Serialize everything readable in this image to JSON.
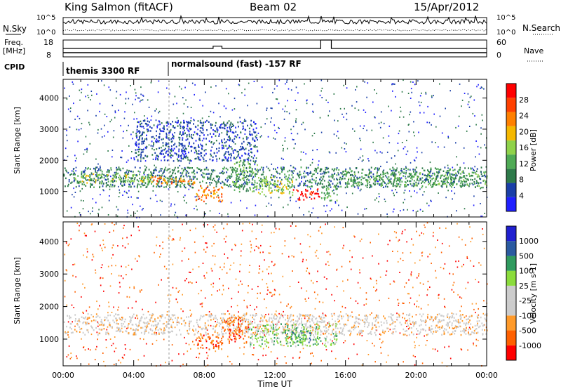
{
  "header": {
    "station": "King Salmon (fitACF)",
    "beam": "Beam 02",
    "date": "15/Apr/2012"
  },
  "left_labels": {
    "nsky": "N.Sky",
    "freq": "Freq.",
    "freq_unit": "[MHz]",
    "cpid": "CPID"
  },
  "right_labels": {
    "nsearch": "N.Search",
    "nave": "Nave"
  },
  "cpid_segments": [
    {
      "label": "themis 3300 RF",
      "start_hour": 0
    },
    {
      "label": "normalsound (fast) -157 RF",
      "start_hour": 6
    }
  ],
  "colors": {
    "power_scale": [
      "#2020ff",
      "#1a3fa8",
      "#2e7a4a",
      "#4faa55",
      "#8fd24a",
      "#f5b800",
      "#ff8000",
      "#ff4000",
      "#ff0000"
    ],
    "velocity_scale": [
      "#ff0000",
      "#ff6000",
      "#ff9a2a",
      "#cccccc",
      "#cccccc",
      "#8bdc3c",
      "#2f9a5e",
      "#2a5aa0",
      "#2020d0"
    ]
  },
  "chart_data": [
    {
      "type": "line",
      "title": "N.Sky / N.Search",
      "left_axis": {
        "label": "N.Sky",
        "ticks": [
          "10^5",
          "10^0"
        ]
      },
      "right_axis": {
        "label": "N.Search",
        "ticks": [
          "10^5",
          "10^0"
        ]
      },
      "x": {
        "range_hours": [
          0,
          24
        ]
      }
    },
    {
      "type": "line",
      "left_axis": {
        "label": "Freq. [MHz]",
        "ticks": [
          "18",
          "8"
        ],
        "ylim": [
          8,
          18
        ]
      },
      "right_axis": {
        "label": "Nave",
        "ticks": [
          "60",
          "0"
        ],
        "ylim": [
          0,
          60
        ]
      },
      "series": [
        {
          "name": "Freq.",
          "x": [
            0,
            24
          ],
          "y": [
            10.5,
            10.5
          ]
        },
        {
          "name": "Nave",
          "x": [
            0,
            8.5,
            8.5,
            9.0,
            9.0,
            14.6,
            14.6,
            15.2,
            15.2,
            24
          ],
          "y": [
            30,
            30,
            38,
            38,
            30,
            30,
            60,
            60,
            30,
            30
          ]
        }
      ]
    },
    {
      "type": "heatmap",
      "ylabel": "Slant Range [km]",
      "xlabel": "",
      "ylim": [
        180,
        4600
      ],
      "yticks": [
        1000,
        2000,
        3000,
        4000
      ],
      "colorbar": {
        "label": "Power [dB]",
        "ticks": [
          "4",
          "8",
          "12",
          "16",
          "20",
          "24",
          "28"
        ]
      },
      "regions": [
        {
          "x0": 0,
          "x1": 24,
          "y0": 1150,
          "y1": 1800,
          "level": 2
        },
        {
          "x0": 0.5,
          "x1": 5,
          "y0": 1300,
          "y1": 1600,
          "level": 4
        },
        {
          "x0": 5,
          "x1": 7.5,
          "y0": 1250,
          "y1": 1500,
          "level": 6
        },
        {
          "x0": 7.5,
          "x1": 9,
          "y0": 700,
          "y1": 1200,
          "level": 6
        },
        {
          "x0": 9.5,
          "x1": 11,
          "y0": 1000,
          "y1": 2000,
          "level": 3
        },
        {
          "x0": 11,
          "x1": 13,
          "y0": 900,
          "y1": 1500,
          "level": 4
        },
        {
          "x0": 13,
          "x1": 14.5,
          "y0": 750,
          "y1": 1100,
          "level": 8
        },
        {
          "x0": 14.6,
          "x1": 15.5,
          "y0": 700,
          "y1": 1200,
          "level": 3
        },
        {
          "x0": 16,
          "x1": 24,
          "y0": 1200,
          "y1": 1650,
          "level": 3
        },
        {
          "x0": 4,
          "x1": 11,
          "y0": 2000,
          "y1": 3300,
          "level": 1
        }
      ]
    },
    {
      "type": "heatmap",
      "ylabel": "Slant Range [km]",
      "xlabel": "Time UT",
      "ylim": [
        180,
        4600
      ],
      "yticks": [
        1000,
        2000,
        3000,
        4000
      ],
      "x_tick_labels": [
        "00:00",
        "04:00",
        "08:00",
        "12:00",
        "16:00",
        "20:00",
        "00:00"
      ],
      "colorbar": {
        "label": "Velocity [m s-1]",
        "ticks": [
          "-1000",
          "-500",
          "-100",
          "-25",
          "25",
          "100",
          "500",
          "1000"
        ]
      },
      "regions": [
        {
          "x0": 0,
          "x1": 24,
          "y0": 1150,
          "y1": 1800,
          "level": 3
        },
        {
          "x0": 7.5,
          "x1": 9,
          "y0": 700,
          "y1": 1200,
          "level": 1
        },
        {
          "x0": 9,
          "x1": 10.5,
          "y0": 900,
          "y1": 1700,
          "level": 1
        },
        {
          "x0": 10.5,
          "x1": 15.5,
          "y0": 800,
          "y1": 1500,
          "level": 5
        },
        {
          "x0": 12.5,
          "x1": 14,
          "y0": 900,
          "y1": 1300,
          "level": 6
        }
      ]
    }
  ]
}
